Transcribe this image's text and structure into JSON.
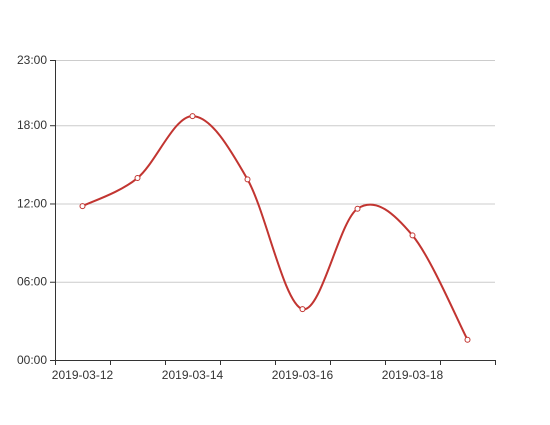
{
  "chart_data": {
    "type": "line",
    "smooth": true,
    "categories": [
      "2019-03-12",
      "2019-03-13",
      "2019-03-14",
      "2019-03-15",
      "2019-03-16",
      "2019-03-17",
      "2019-03-18",
      "2019-03-19"
    ],
    "x_tick_labels": [
      "2019-03-12",
      "",
      "2019-03-14",
      "",
      "2019-03-16",
      "",
      "2019-03-18",
      ""
    ],
    "y_tick_labels": [
      "00:00",
      "06:00",
      "12:00",
      "18:00",
      "23:00"
    ],
    "y_ticks_hours": [
      0,
      6,
      12,
      18,
      23
    ],
    "ylim_hours": [
      0,
      23
    ],
    "series": [
      {
        "values_hours": [
          11.8,
          13.95,
          18.7,
          13.85,
          3.9,
          11.6,
          9.55,
          1.55
        ],
        "values_time": [
          "11:48",
          "13:57",
          "18:42",
          "13:51",
          "03:54",
          "11:36",
          "09:33",
          "01:33"
        ]
      }
    ],
    "grid": true,
    "legend": "none",
    "colors": {
      "line": "#c23531",
      "point_fill": "#ffffff",
      "grid": "#cccccc",
      "axis": "#333333",
      "text": "#333333"
    }
  }
}
